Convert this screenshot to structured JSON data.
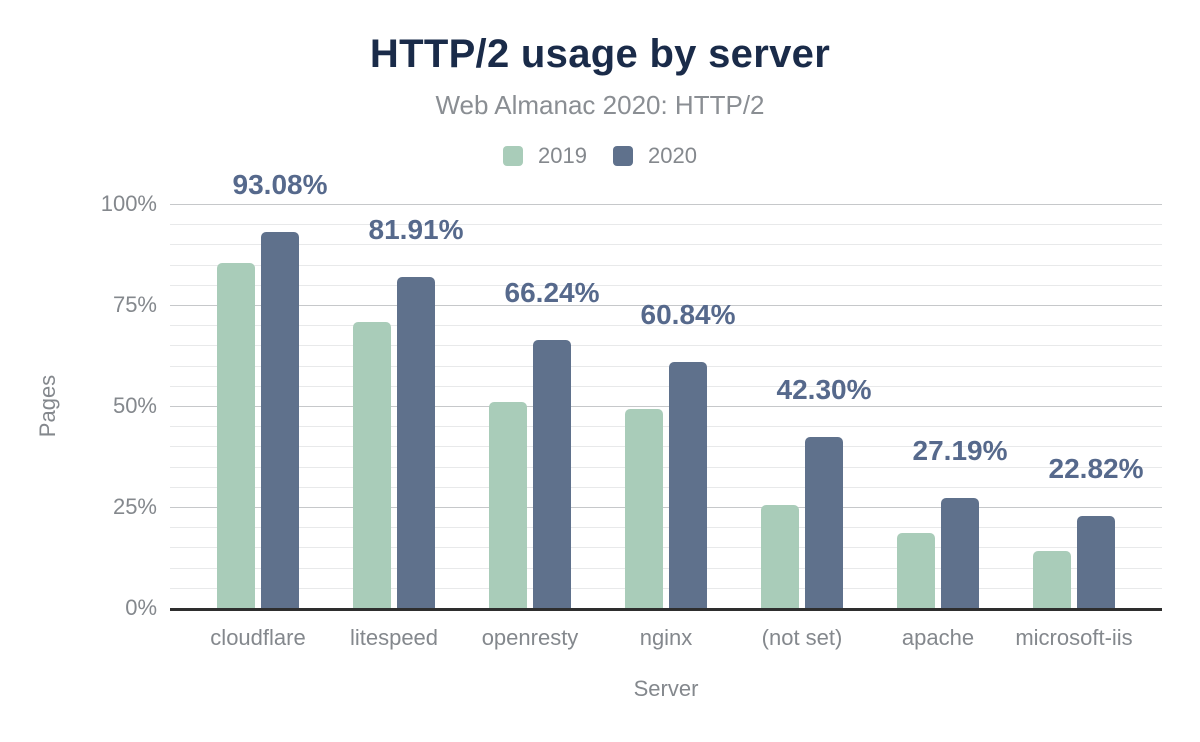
{
  "header": {
    "title": "HTTP/2 usage by server",
    "subtitle": "Web Almanac 2020: HTTP/2"
  },
  "axes": {
    "y_title": "Pages",
    "x_title": "Server",
    "y_ticks": [
      {
        "value": 100,
        "label": "100%"
      },
      {
        "value": 75,
        "label": "75%"
      },
      {
        "value": 50,
        "label": "50%"
      },
      {
        "value": 25,
        "label": "25%"
      },
      {
        "value": 0,
        "label": "0%"
      }
    ]
  },
  "chart_data": {
    "type": "bar",
    "title": "HTTP/2 usage by server",
    "subtitle": "Web Almanac 2020: HTTP/2",
    "categories": [
      "cloudflare",
      "litespeed",
      "openresty",
      "nginx",
      "(not set)",
      "apache",
      "microsoft-iis"
    ],
    "series": [
      {
        "name": "2019",
        "color": "#a9ccb9",
        "values": [
          85.4,
          70.8,
          51.05,
          49.23,
          25.57,
          18.49,
          14.1
        ]
      },
      {
        "name": "2020",
        "color": "#5f718c",
        "values": [
          93.08,
          81.91,
          66.24,
          60.84,
          42.3,
          27.19,
          22.82
        ],
        "value_labels": [
          "93.08%",
          "81.91%",
          "66.24%",
          "60.84%",
          "42.30%",
          "27.19%",
          "22.82%"
        ]
      }
    ],
    "xlabel": "Server",
    "ylabel": "Pages",
    "ylim": [
      0,
      100
    ],
    "grid": {
      "on": true,
      "minor_step": 5,
      "major_step": 25
    },
    "legend_position": "top",
    "value_label_color": "#56698c",
    "title_color": "#1a2b49",
    "axis_line_color": "#2e2e2e"
  }
}
